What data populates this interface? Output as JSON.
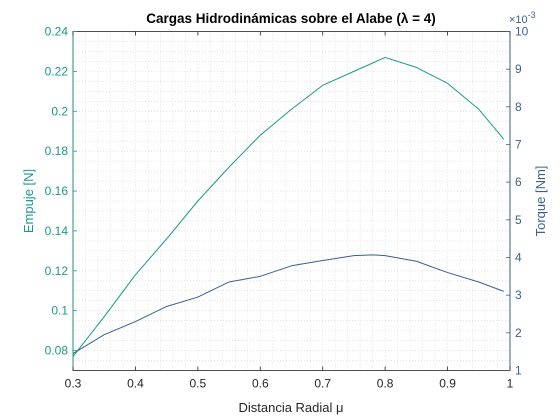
{
  "chart_data": {
    "type": "line",
    "title": "Cargas Hidrodinámicas sobre el Alabe (λ = 4)",
    "xlabel": "Distancia Radial μ",
    "ylabel_left": "Empuje [N]",
    "ylabel_right": "Torque [Nm]",
    "right_exponent_base": "×10",
    "right_exponent_power": "-3",
    "xlim": [
      0.3,
      1.0
    ],
    "ylim_left": [
      0.07,
      0.24
    ],
    "ylim_right": [
      1.0,
      10.0
    ],
    "x_ticks": [
      "0.3",
      "0.4",
      "0.5",
      "0.6",
      "0.7",
      "0.8",
      "0.9",
      "1"
    ],
    "y_left_ticks": [
      "0.08",
      "0.1",
      "0.12",
      "0.14",
      "0.16",
      "0.18",
      "0.2",
      "0.22",
      "0.24"
    ],
    "y_right_ticks": [
      "1",
      "2",
      "3",
      "4",
      "5",
      "6",
      "7",
      "8",
      "9",
      "10"
    ],
    "grid": "minor-dotted",
    "colors": {
      "empuje": "#1a9a8a",
      "torque": "#3d5f8a",
      "axis_x": "#262626"
    },
    "series": [
      {
        "axis": "left",
        "x": [
          0.3,
          0.35,
          0.4,
          0.45,
          0.5,
          0.55,
          0.6,
          0.65,
          0.7,
          0.75,
          0.8,
          0.85,
          0.9,
          0.95,
          0.99
        ],
        "values": [
          0.077,
          0.097,
          0.118,
          0.136,
          0.155,
          0.172,
          0.188,
          0.201,
          0.213,
          0.22,
          0.227,
          0.222,
          0.214,
          0.201,
          0.186
        ]
      },
      {
        "axis": "right",
        "x": [
          0.3,
          0.35,
          0.4,
          0.45,
          0.5,
          0.55,
          0.6,
          0.65,
          0.7,
          0.75,
          0.78,
          0.8,
          0.85,
          0.9,
          0.95,
          0.99
        ],
        "values": [
          1.45,
          1.95,
          2.3,
          2.7,
          2.95,
          3.35,
          3.5,
          3.78,
          3.92,
          4.05,
          4.07,
          4.05,
          3.9,
          3.6,
          3.35,
          3.1
        ]
      }
    ]
  }
}
